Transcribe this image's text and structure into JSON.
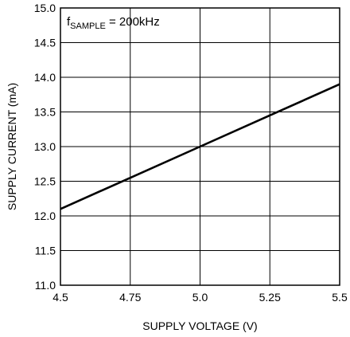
{
  "chart_data": {
    "type": "line",
    "title": "",
    "xlabel": "SUPPLY VOLTAGE (V)",
    "ylabel": "SUPPLY CURRENT (mA)",
    "xlim": [
      4.5,
      5.5
    ],
    "ylim": [
      11.0,
      15.0
    ],
    "x_ticks": [
      4.5,
      4.75,
      5.0,
      5.25,
      5.5
    ],
    "x_tick_labels": [
      "4.5",
      "4.75",
      "5.0",
      "5.25",
      "5.5"
    ],
    "y_ticks": [
      11.0,
      11.5,
      12.0,
      12.5,
      13.0,
      13.5,
      14.0,
      14.5,
      15.0
    ],
    "y_tick_labels": [
      "11.0",
      "11.5",
      "12.0",
      "12.5",
      "13.0",
      "13.5",
      "14.0",
      "14.5",
      "15.0"
    ],
    "grid": true,
    "legend": "none",
    "annotation": {
      "prefix": "f",
      "subscript": "SAMPLE",
      "suffix": " = 200kHz",
      "position": "top-left"
    },
    "series": [
      {
        "color": "#000000",
        "x": [
          4.5,
          4.75,
          5.0,
          5.25,
          5.5
        ],
        "y": [
          12.1,
          12.55,
          13.0,
          13.45,
          13.9
        ]
      }
    ]
  }
}
